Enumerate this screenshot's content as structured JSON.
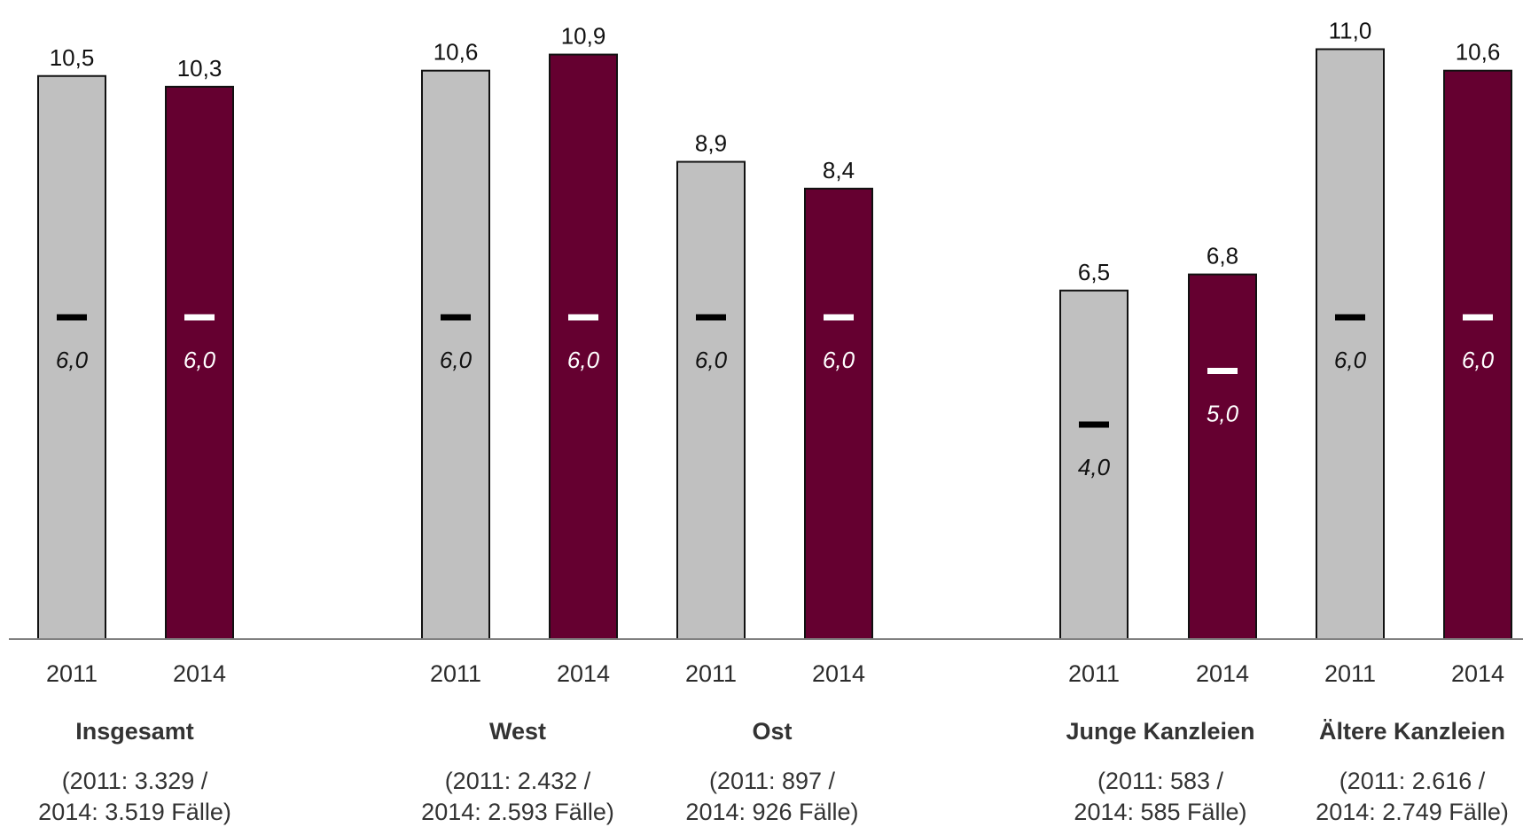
{
  "chart_data": {
    "type": "bar",
    "title": "",
    "xlabel": "",
    "ylabel": "",
    "ylim": [
      0,
      12
    ],
    "grid": false,
    "legend": "none",
    "colors": {
      "2011": "#c0c0c0",
      "2014": "#650030",
      "median_2011": "#000000",
      "median_2014": "#ffffff",
      "axis": "#808080"
    },
    "series_years": [
      "2011",
      "2014"
    ],
    "groups": [
      {
        "name": "Insgesamt",
        "cases_line1": "(2011: 3.329 /",
        "cases_line2": "2014: 3.519 Fälle)",
        "bars": [
          {
            "year": "2011",
            "value": 10.5,
            "value_label": "10,5",
            "median": 6.0,
            "median_label": "6,0"
          },
          {
            "year": "2014",
            "value": 10.3,
            "value_label": "10,3",
            "median": 6.0,
            "median_label": "6,0"
          }
        ]
      },
      {
        "name": "West",
        "cases_line1": "(2011: 2.432 /",
        "cases_line2": "2014: 2.593 Fälle)",
        "bars": [
          {
            "year": "2011",
            "value": 10.6,
            "value_label": "10,6",
            "median": 6.0,
            "median_label": "6,0"
          },
          {
            "year": "2014",
            "value": 10.9,
            "value_label": "10,9",
            "median": 6.0,
            "median_label": "6,0"
          }
        ]
      },
      {
        "name": "Ost",
        "cases_line1": "(2011: 897 /",
        "cases_line2": "2014: 926 Fälle)",
        "bars": [
          {
            "year": "2011",
            "value": 8.9,
            "value_label": "8,9",
            "median": 6.0,
            "median_label": "6,0"
          },
          {
            "year": "2014",
            "value": 8.4,
            "value_label": "8,4",
            "median": 6.0,
            "median_label": "6,0"
          }
        ]
      },
      {
        "name": "Junge Kanzleien",
        "cases_line1": "(2011: 583 /",
        "cases_line2": "2014: 585 Fälle)",
        "bars": [
          {
            "year": "2011",
            "value": 6.5,
            "value_label": "6,5",
            "median": 4.0,
            "median_label": "4,0"
          },
          {
            "year": "2014",
            "value": 6.8,
            "value_label": "6,8",
            "median": 5.0,
            "median_label": "5,0"
          }
        ]
      },
      {
        "name": "Ältere Kanzleien",
        "cases_line1": "(2011: 2.616 /",
        "cases_line2": "2014: 2.749 Fälle)",
        "bars": [
          {
            "year": "2011",
            "value": 11.0,
            "value_label": "11,0",
            "median": 6.0,
            "median_label": "6,0"
          },
          {
            "year": "2014",
            "value": 10.6,
            "value_label": "10,6",
            "median": 6.0,
            "median_label": "6,0"
          }
        ]
      }
    ]
  }
}
